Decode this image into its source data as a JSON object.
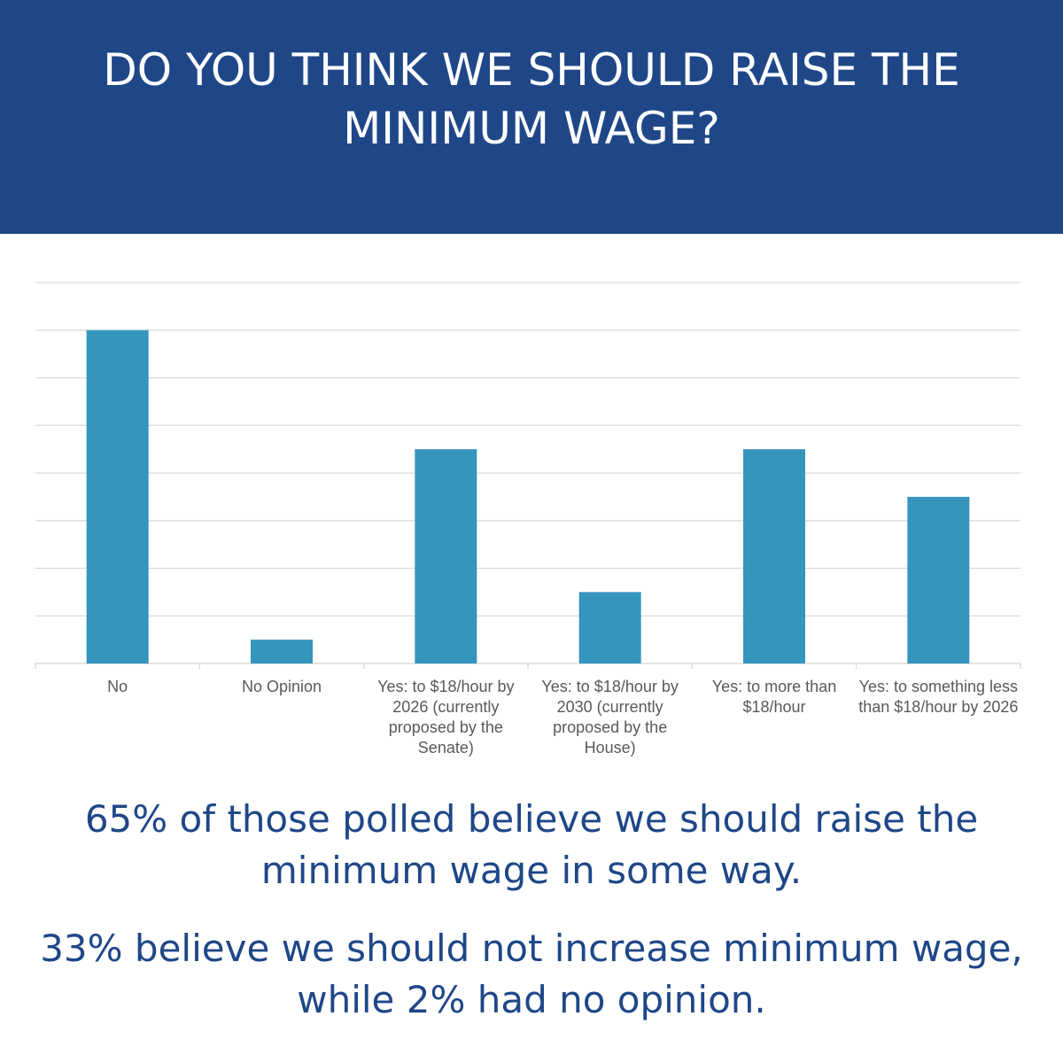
{
  "chart_data": {
    "type": "bar",
    "title": "DO YOU THINK WE SHOULD RAISE THE MINIMUM WAGE?",
    "categories": [
      "No",
      "No Opinion",
      "Yes: to $18/hour by 2026 (currently proposed by the Senate)",
      "Yes: to $18/hour by 2030 (currently proposed by the House)",
      "Yes: to more than $18/hour",
      "Yes: to something less than $18/hour by 2026"
    ],
    "values": [
      14,
      1,
      9,
      3,
      9,
      7
    ],
    "color": "#3595bd",
    "ylim": [
      0,
      16
    ],
    "yticks": [
      0,
      2,
      4,
      6,
      8,
      10,
      12,
      14,
      16
    ],
    "grid": true,
    "annotations": [
      "65% of those polled believe we should raise the minimum wage in some way.",
      "33% believe we should not increase minimum wage, while 2% had no opinion."
    ]
  }
}
